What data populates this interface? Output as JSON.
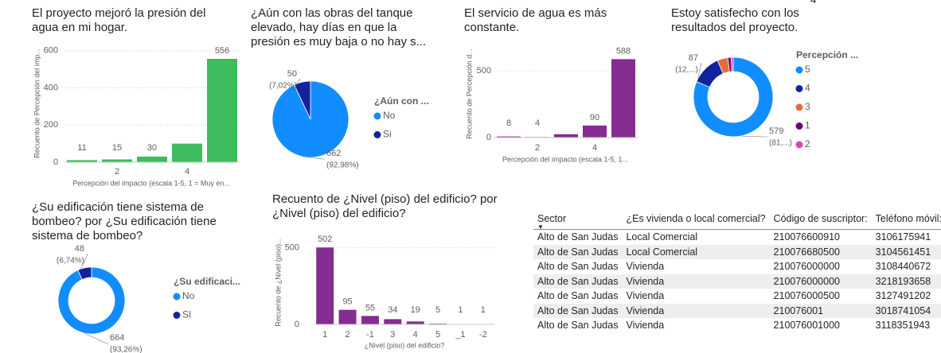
{
  "top_fragment": "4",
  "chart_data": [
    {
      "type": "bar",
      "title": "El proyecto mejoró la presión del agua en mi hogar.",
      "x": [
        1,
        2,
        3,
        4,
        5
      ],
      "values": [
        11,
        15,
        30,
        100,
        556
      ],
      "value_labels": [
        "11",
        "15",
        "30",
        null,
        "556"
      ],
      "color": "#3dbd5d",
      "xlim": [
        0.5,
        5.5
      ],
      "xticks": [
        2,
        4
      ],
      "ylim": [
        0,
        650
      ],
      "yticks": [
        0,
        200,
        400,
        600
      ],
      "grid": true,
      "xlabel": "Percepción del impacto (escala 1-5, 1 = Muy en...",
      "ylabel": "Recuento de Percepción del imp..."
    },
    {
      "type": "pie",
      "title": "¿Aún con las obras del tanque elevado, hay días en que la presión es muy baja o no hay s...",
      "categories": [
        "No",
        "Si"
      ],
      "values": [
        662,
        50
      ],
      "value_labels": [
        "662",
        "50"
      ],
      "percent_labels": [
        "(92,98%)",
        "(7,02%)"
      ],
      "colors": [
        "#118dff",
        "#12239e"
      ],
      "legend_title": "¿Aún con ..."
    },
    {
      "type": "bar",
      "title": "El servicio de agua es más constante.",
      "x": [
        1,
        2,
        3,
        4,
        5
      ],
      "values": [
        8,
        4,
        25,
        90,
        588
      ],
      "value_labels": [
        "8",
        "4",
        null,
        "90",
        "588"
      ],
      "color": "#862c92",
      "xlim": [
        0.5,
        5.5
      ],
      "xticks": [
        2,
        4
      ],
      "ylim": [
        0,
        650
      ],
      "yticks": [
        0,
        500
      ],
      "grid": true,
      "xlabel": "Percepción del impacto (escala 1-5, 1...",
      "ylabel": "Recuento de Percepción d..."
    },
    {
      "type": "donut",
      "title": "Estoy satisfecho con los resultados del proyecto.",
      "categories": [
        "5",
        "4",
        "3",
        "1",
        "2"
      ],
      "values": [
        579,
        87,
        30,
        10,
        6
      ],
      "value_labels": [
        "579",
        "87",
        null,
        null,
        null
      ],
      "percent_labels": [
        "(81,...)",
        "(12,...)",
        null,
        null,
        null
      ],
      "colors": [
        "#118dff",
        "#12239e",
        "#e66c37",
        "#6b007b",
        "#e044a7"
      ],
      "legend_title": "Percepción ..."
    },
    {
      "type": "donut",
      "title": "¿Su edificación tiene sistema de bombeo? por ¿Su edificación tiene sistema de bombeo?",
      "categories": [
        "No",
        "SI"
      ],
      "values": [
        664,
        48
      ],
      "value_labels": [
        "664",
        "48"
      ],
      "percent_labels": [
        "(93,26%)",
        "(6,74%)"
      ],
      "colors": [
        "#118dff",
        "#12239e"
      ],
      "legend_title": "¿Su edificaci..."
    },
    {
      "type": "bar",
      "title": "Recuento de ¿Nivel (piso) del edificio? por ¿Nivel (piso) del edificio?",
      "categories": [
        "1",
        "2",
        "-1",
        "3",
        "4",
        "5",
        "_1",
        "-2"
      ],
      "values": [
        502,
        95,
        55,
        34,
        19,
        5,
        1,
        1
      ],
      "value_labels": [
        "502",
        "95",
        "55",
        "34",
        "19",
        "5",
        "1",
        "1"
      ],
      "color": "#862c92",
      "ylim": [
        0,
        550
      ],
      "yticks": [
        0,
        500
      ],
      "grid": true,
      "xlabel": "¿Nivel (piso) del edificio?",
      "ylabel": "Recuento de ¿Nivel (piso)..."
    }
  ],
  "table": {
    "columns": [
      "Sector",
      "¿Es vivienda o local comercial?",
      "Código de suscriptor:",
      "Teléfono móvil:"
    ],
    "rows": [
      [
        "Alto de San Judas",
        "Local Comercial",
        "210076600910",
        "3106175941"
      ],
      [
        "Alto de San Judas",
        "Local Comercial",
        "210076680500",
        "3104561451"
      ],
      [
        "Alto de San Judas",
        "Vivienda",
        "210076000000",
        "3108440672"
      ],
      [
        "Alto de San Judas",
        "Vivienda",
        "210076000000",
        "3218193658"
      ],
      [
        "Alto de San Judas",
        "Vivienda",
        "210076000500",
        "3127491202"
      ],
      [
        "Alto de San Judas",
        "Vivienda",
        "210076001",
        "3018741054"
      ],
      [
        "Alto de San Judas",
        "Vivienda",
        "210076001000",
        "3118351943"
      ]
    ]
  }
}
